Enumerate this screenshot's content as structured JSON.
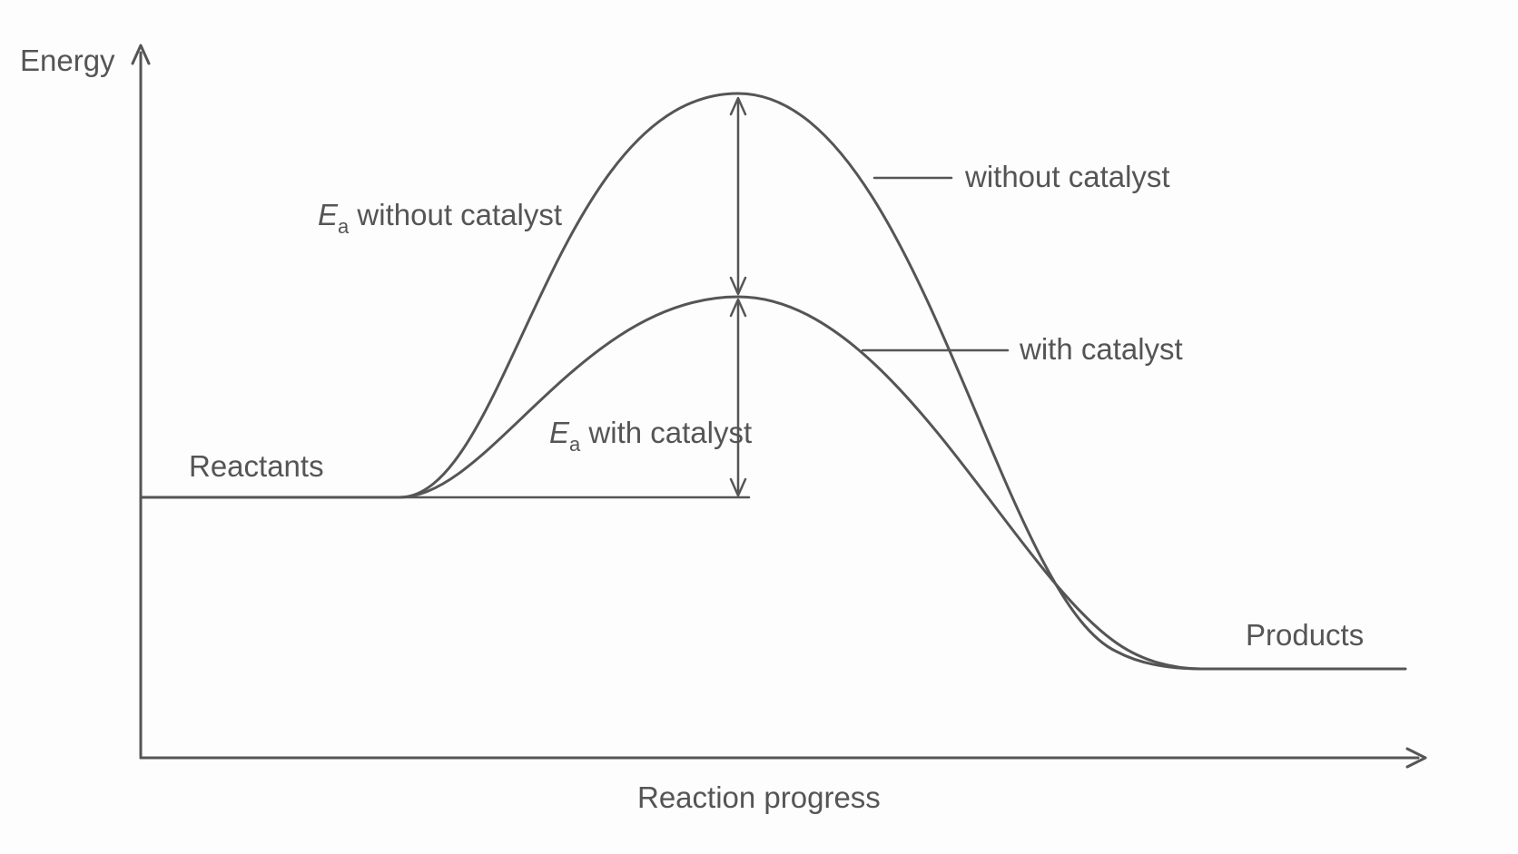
{
  "axes": {
    "y_label": "Energy",
    "x_label": "Reaction progress"
  },
  "labels": {
    "reactants": "Reactants",
    "products": "Products",
    "without_catalyst": "without catalyst",
    "with_catalyst": "with catalyst",
    "ea_symbol": "E",
    "ea_subscript": "a",
    "ea_without_text": " without catalyst",
    "ea_with_text": " with catalyst"
  },
  "colors": {
    "ink": "#555555",
    "background": "#fdfdfd"
  }
}
